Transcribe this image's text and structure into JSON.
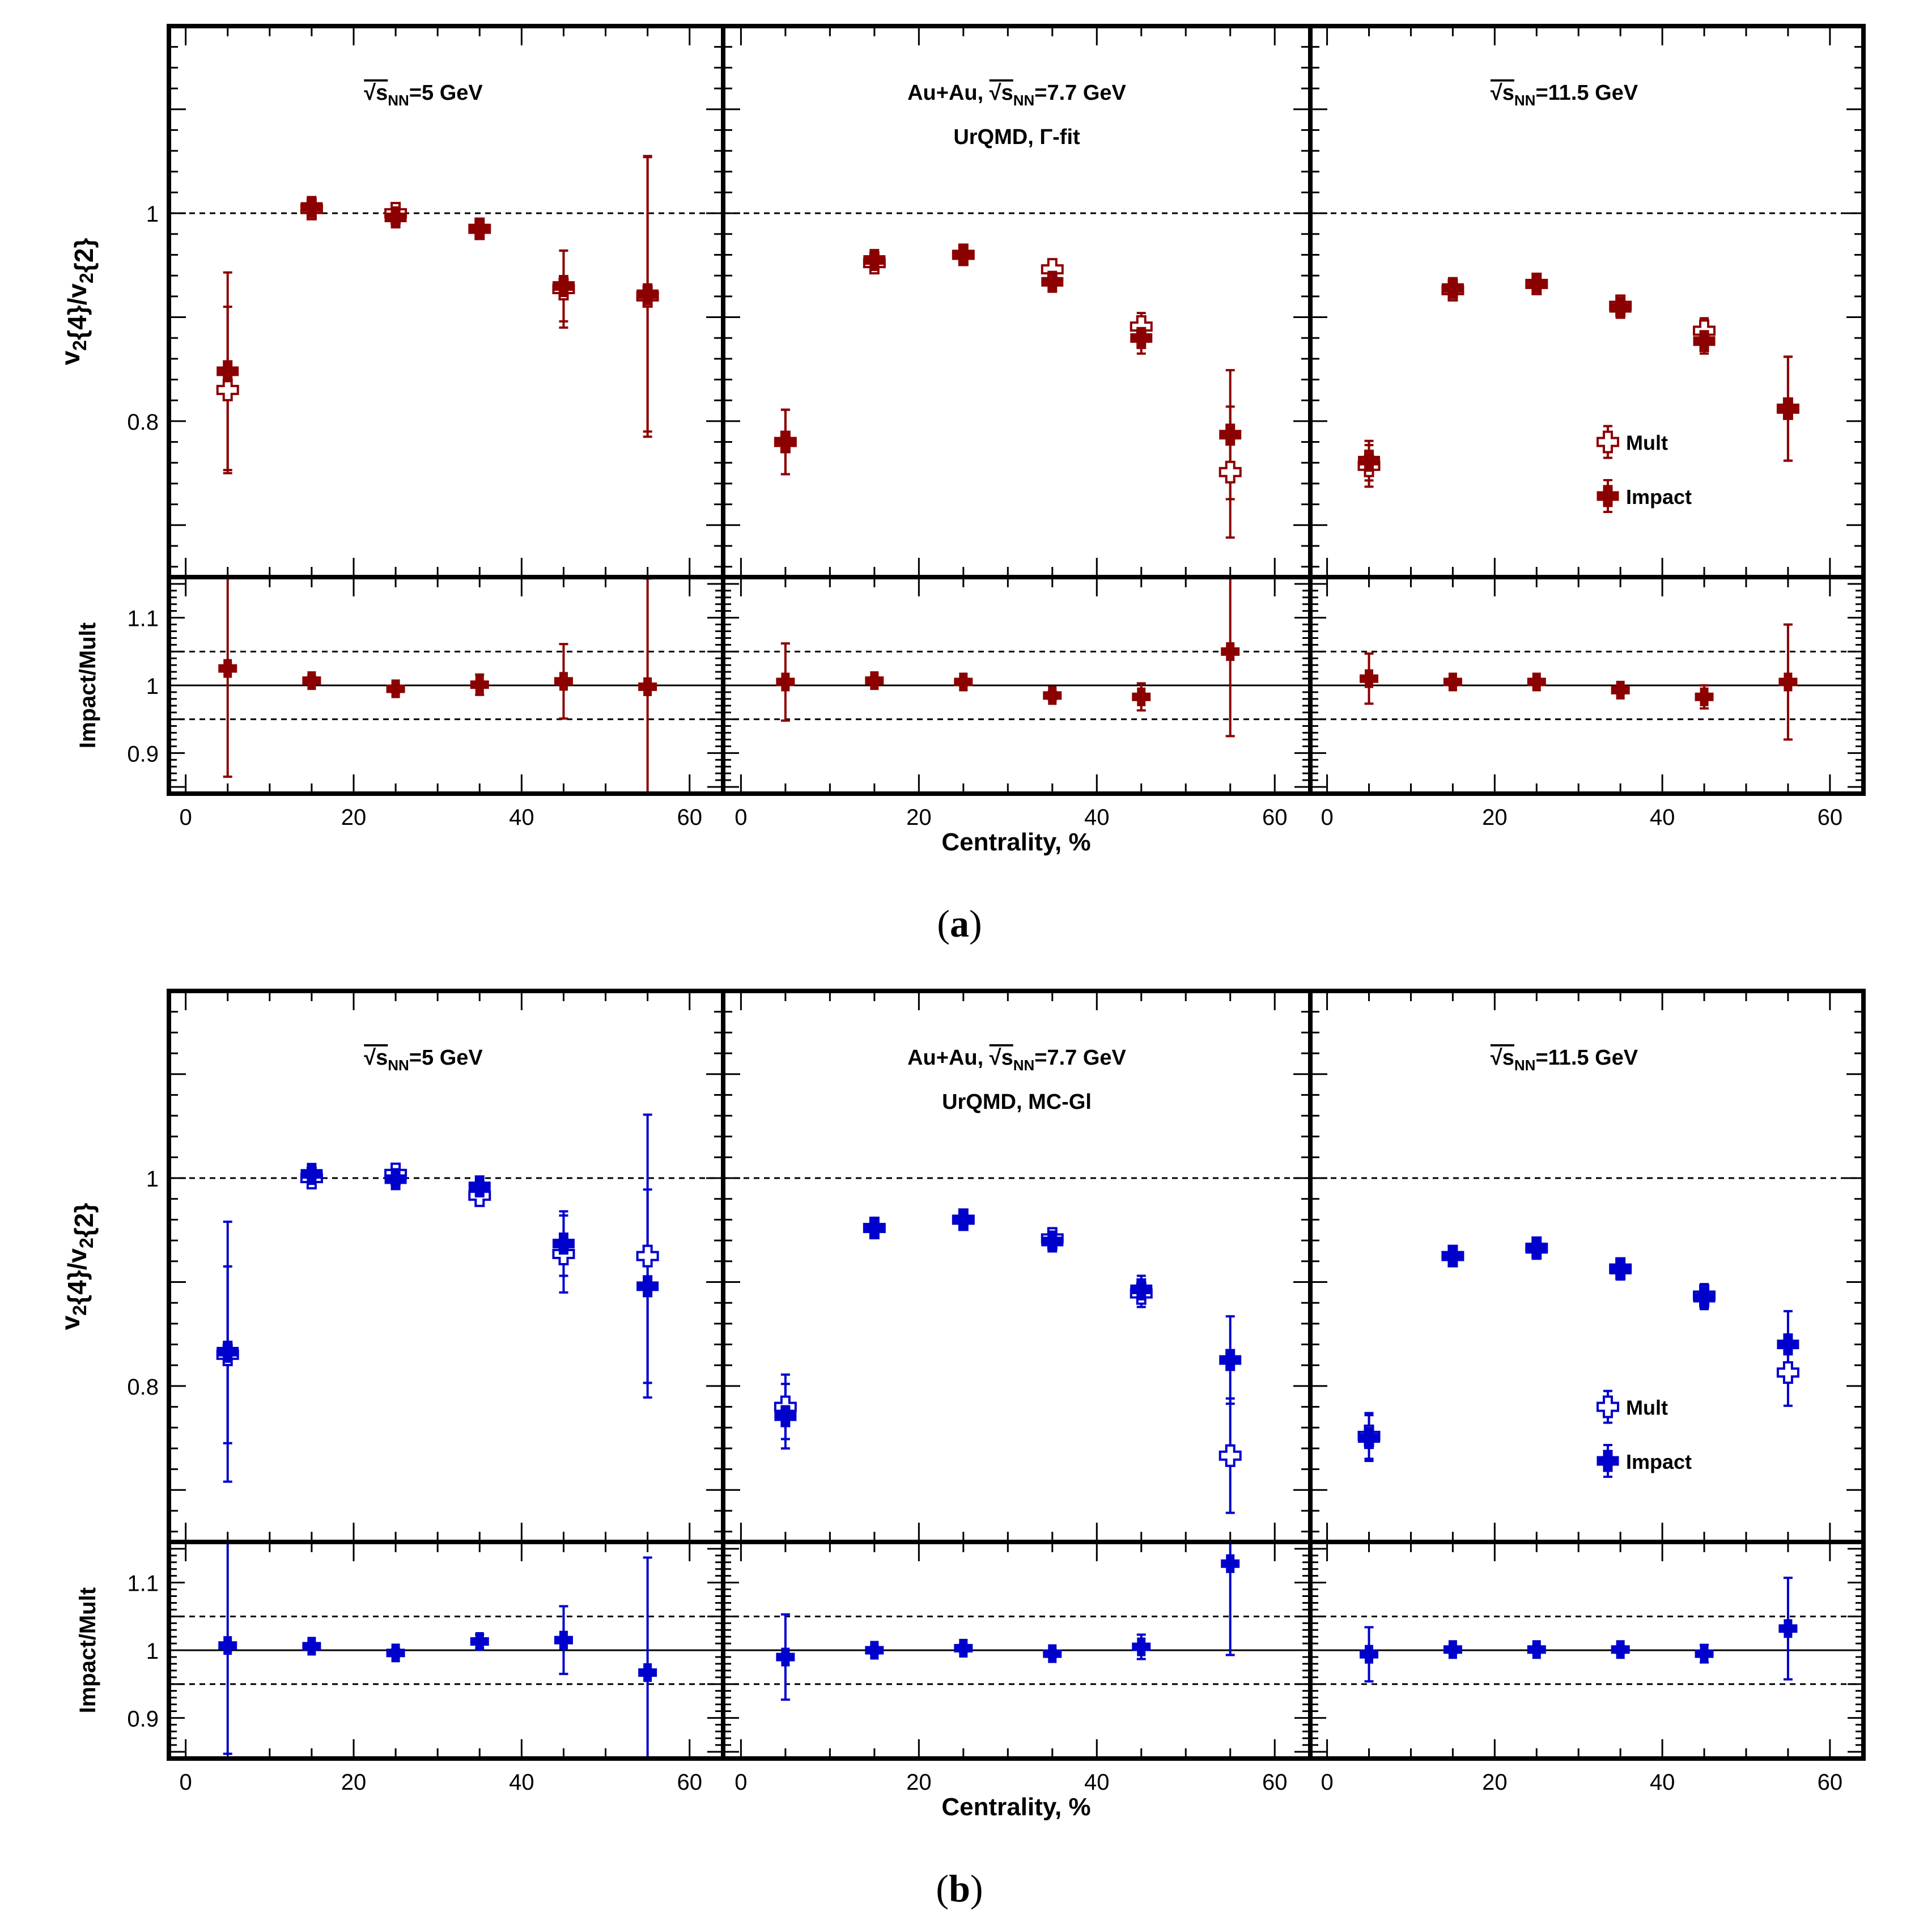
{
  "chart_data": [
    {
      "id": "a",
      "type": "scatter",
      "caption_label": "a",
      "color": "#8b0000",
      "xlabel": "Centrality, %",
      "ylabel_main": "v2{4}/v2{2}",
      "ylabel_ratio": "Impact/Mult",
      "x_ticks": [
        0,
        20,
        40,
        60
      ],
      "x_range": [
        -2,
        64
      ],
      "main_ylim": [
        0.65,
        1.18
      ],
      "main_yticks": [
        "0.8",
        "1"
      ],
      "ratio_ylim": [
        0.84,
        1.16
      ],
      "ratio_yticks": [
        "0.9",
        "1",
        "1.1"
      ],
      "legend": [
        "Mult",
        "Impact"
      ],
      "panels": [
        {
          "title_lines": [
            "√sNN=5 GeV"
          ],
          "mult": {
            "x": [
              5,
              15,
              25,
              35,
              45,
              55
            ],
            "y": [
              0.83,
              1.004,
              1.0,
              0.985,
              0.927,
              0.92
            ],
            "err": [
              0.08,
              0.005,
              0.004,
              0.006,
              0.037,
              0.135
            ]
          },
          "impact": {
            "x": [
              5,
              15,
              25,
              35,
              45,
              55
            ],
            "y": [
              0.848,
              1.006,
              0.996,
              0.985,
              0.93,
              0.922
            ],
            "err": [
              0.095,
              0.005,
              0.004,
              0.007,
              0.034,
              0.132
            ]
          },
          "ratio": {
            "x": [
              5,
              15,
              25,
              35,
              45,
              55
            ],
            "y": [
              1.025,
              1.007,
              0.995,
              1.001,
              1.006,
              0.998
            ],
            "err": [
              0.16,
              0.006,
              0.005,
              0.015,
              0.055,
              0.16
            ]
          }
        },
        {
          "title_lines": [
            "Au+Au, √sNN=7.7 GeV",
            "UrQMD, Γ-fit"
          ],
          "mult": {
            "x": [
              5,
              15,
              25,
              35,
              45,
              55
            ],
            "y": [
              0.78,
              0.952,
              0.96,
              0.946,
              0.891,
              0.751
            ],
            "err": [
              0.031,
              0.006,
              0.005,
              0.006,
              0.013,
              0.063
            ]
          },
          "impact": {
            "x": [
              5,
              15,
              25,
              35,
              45,
              55
            ],
            "y": [
              0.78,
              0.955,
              0.96,
              0.934,
              0.88,
              0.787
            ],
            "err": [
              0.031,
              0.006,
              0.005,
              0.006,
              0.015,
              0.062
            ]
          },
          "ratio": {
            "x": [
              5,
              15,
              25,
              35,
              45,
              55
            ],
            "y": [
              1.005,
              1.007,
              1.005,
              0.985,
              0.983,
              1.05
            ],
            "err": [
              0.057,
              0.005,
              0.005,
              0.006,
              0.02,
              0.125
            ]
          }
        },
        {
          "title_lines": [
            "√sNN=11.5 GeV"
          ],
          "mult": {
            "x": [
              5,
              15,
              25,
              35,
              45,
              55
            ],
            "y": [
              0.757,
              0.926,
              0.932,
              0.911,
              0.887,
              0.812
            ],
            "err": [
              0.02,
              0.006,
              0.005,
              0.006,
              0.012,
              0.05
            ]
          },
          "impact": {
            "x": [
              5,
              15,
              25,
              35,
              45,
              55
            ],
            "y": [
              0.762,
              0.928,
              0.932,
              0.909,
              0.877,
              0.812
            ],
            "err": [
              0.019,
              0.006,
              0.005,
              0.006,
              0.012,
              0.05
            ]
          },
          "ratio": {
            "x": [
              5,
              15,
              25,
              35,
              45,
              55
            ],
            "y": [
              1.01,
              1.005,
              1.005,
              0.993,
              0.983,
              1.005
            ],
            "err": [
              0.037,
              0.005,
              0.005,
              0.005,
              0.017,
              0.085
            ]
          }
        }
      ]
    },
    {
      "id": "b",
      "type": "scatter",
      "caption_label": "b",
      "color": "#0000cc",
      "xlabel": "Centrality, %",
      "ylabel_main": "v2{4}/v2{2}",
      "ylabel_ratio": "Impact/Mult",
      "x_ticks": [
        0,
        20,
        40,
        60
      ],
      "x_range": [
        -2,
        64
      ],
      "main_ylim": [
        0.65,
        1.18
      ],
      "main_yticks": [
        "0.8",
        "1"
      ],
      "ratio_ylim": [
        0.84,
        1.16
      ],
      "ratio_yticks": [
        "0.9",
        "1",
        "1.1"
      ],
      "legend": [
        "Mult",
        "Impact"
      ],
      "panels": [
        {
          "title_lines": [
            "√sNN=5 GeV"
          ],
          "mult": {
            "x": [
              5,
              15,
              25,
              35,
              45,
              55
            ],
            "y": [
              0.83,
              1.0,
              1.004,
              0.983,
              0.927,
              0.925
            ],
            "err": [
              0.085,
              0.005,
              0.004,
              0.006,
              0.037,
              0.136
            ]
          },
          "impact": {
            "x": [
              5,
              15,
              25,
              35,
              45,
              55
            ],
            "y": [
              0.833,
              1.004,
              0.999,
              0.992,
              0.937,
              0.896
            ],
            "err": [
              0.125,
              0.005,
              0.004,
              0.006,
              0.031,
              0.093
            ]
          },
          "ratio": {
            "x": [
              5,
              15,
              25,
              35,
              45,
              55
            ],
            "y": [
              1.007,
              1.006,
              0.996,
              1.013,
              1.015,
              0.967
            ],
            "err": [
              0.16,
              0.005,
              0.005,
              0.01,
              0.05,
              0.17
            ]
          }
        },
        {
          "title_lines": [
            "Au+Au, √sNN=7.7 GeV",
            "UrQMD, MC-Gl"
          ],
          "mult": {
            "x": [
              5,
              15,
              25,
              35,
              45,
              55
            ],
            "y": [
              0.78,
              0.952,
              0.96,
              0.942,
              0.889,
              0.733
            ],
            "err": [
              0.031,
              0.006,
              0.005,
              0.006,
              0.013,
              0.055
            ]
          },
          "impact": {
            "x": [
              5,
              15,
              25,
              35,
              45,
              55
            ],
            "y": [
              0.771,
              0.952,
              0.96,
              0.939,
              0.893,
              0.825
            ],
            "err": [
              0.031,
              0.006,
              0.005,
              0.006,
              0.013,
              0.042
            ]
          },
          "ratio": {
            "x": [
              5,
              15,
              25,
              35,
              45,
              55
            ],
            "y": [
              0.99,
              1.0,
              1.003,
              0.995,
              1.005,
              1.128
            ],
            "err": [
              0.063,
              0.005,
              0.005,
              0.005,
              0.018,
              0.135
            ]
          }
        },
        {
          "title_lines": [
            "√sNN=11.5 GeV"
          ],
          "mult": {
            "x": [
              5,
              15,
              25,
              35,
              45,
              55
            ],
            "y": [
              0.752,
              0.925,
              0.933,
              0.913,
              0.887,
              0.813
            ],
            "err": [
              0.022,
              0.006,
              0.005,
              0.006,
              0.011,
              0.032
            ]
          },
          "impact": {
            "x": [
              5,
              15,
              25,
              35,
              45,
              55
            ],
            "y": [
              0.75,
              0.925,
              0.932,
              0.912,
              0.885,
              0.84
            ],
            "err": [
              0.022,
              0.006,
              0.005,
              0.006,
              0.011,
              0.032
            ]
          },
          "ratio": {
            "x": [
              5,
              15,
              25,
              35,
              45,
              55
            ],
            "y": [
              0.994,
              1.001,
              1.001,
              1.001,
              0.995,
              1.032
            ],
            "err": [
              0.04,
              0.005,
              0.005,
              0.005,
              0.013,
              0.075
            ]
          }
        }
      ]
    }
  ]
}
